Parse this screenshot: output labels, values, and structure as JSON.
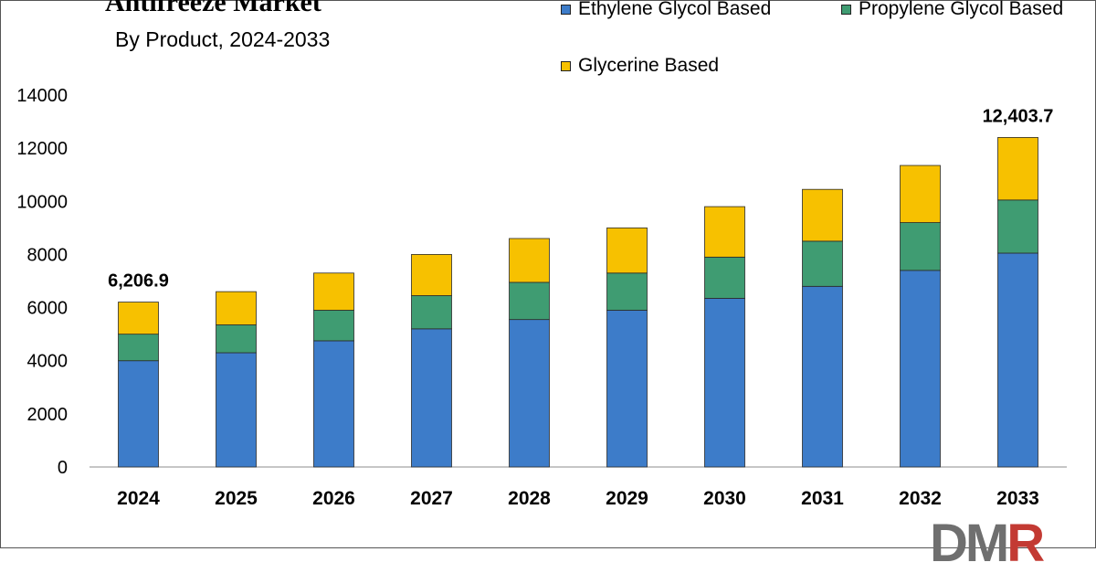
{
  "chart_data": {
    "type": "bar",
    "stacked": true,
    "title": "Antifreeze Market",
    "subtitle": "By Product, 2024-2033",
    "categories": [
      "2024",
      "2025",
      "2026",
      "2027",
      "2028",
      "2029",
      "2030",
      "2031",
      "2032",
      "2033"
    ],
    "series": [
      {
        "name": "Ethylene Glycol Based",
        "color": "#3d7cc9",
        "values": [
          4000,
          4300,
          4750,
          5200,
          5550,
          5900,
          6350,
          6800,
          7400,
          8050
        ]
      },
      {
        "name": "Propylene Glycol Based",
        "color": "#3f9c72",
        "values": [
          1000,
          1050,
          1150,
          1250,
          1400,
          1400,
          1550,
          1700,
          1800,
          2000
        ]
      },
      {
        "name": "Glycerine Based",
        "color": "#f7c100",
        "values": [
          1206.9,
          1250,
          1400,
          1550,
          1650,
          1700,
          1900,
          1950,
          2150,
          2353.7
        ]
      }
    ],
    "data_labels": [
      {
        "category": "2024",
        "text": "6,206.9"
      },
      {
        "category": "2033",
        "text": "12,403.7"
      }
    ],
    "ylim": [
      0,
      14000
    ],
    "yticks": [
      0,
      2000,
      4000,
      6000,
      8000,
      10000,
      12000,
      14000
    ],
    "xlabel": "",
    "ylabel": "",
    "grid": false,
    "legend": "top-right"
  },
  "logo": {
    "text_main": "DM",
    "text_accent": "R"
  }
}
